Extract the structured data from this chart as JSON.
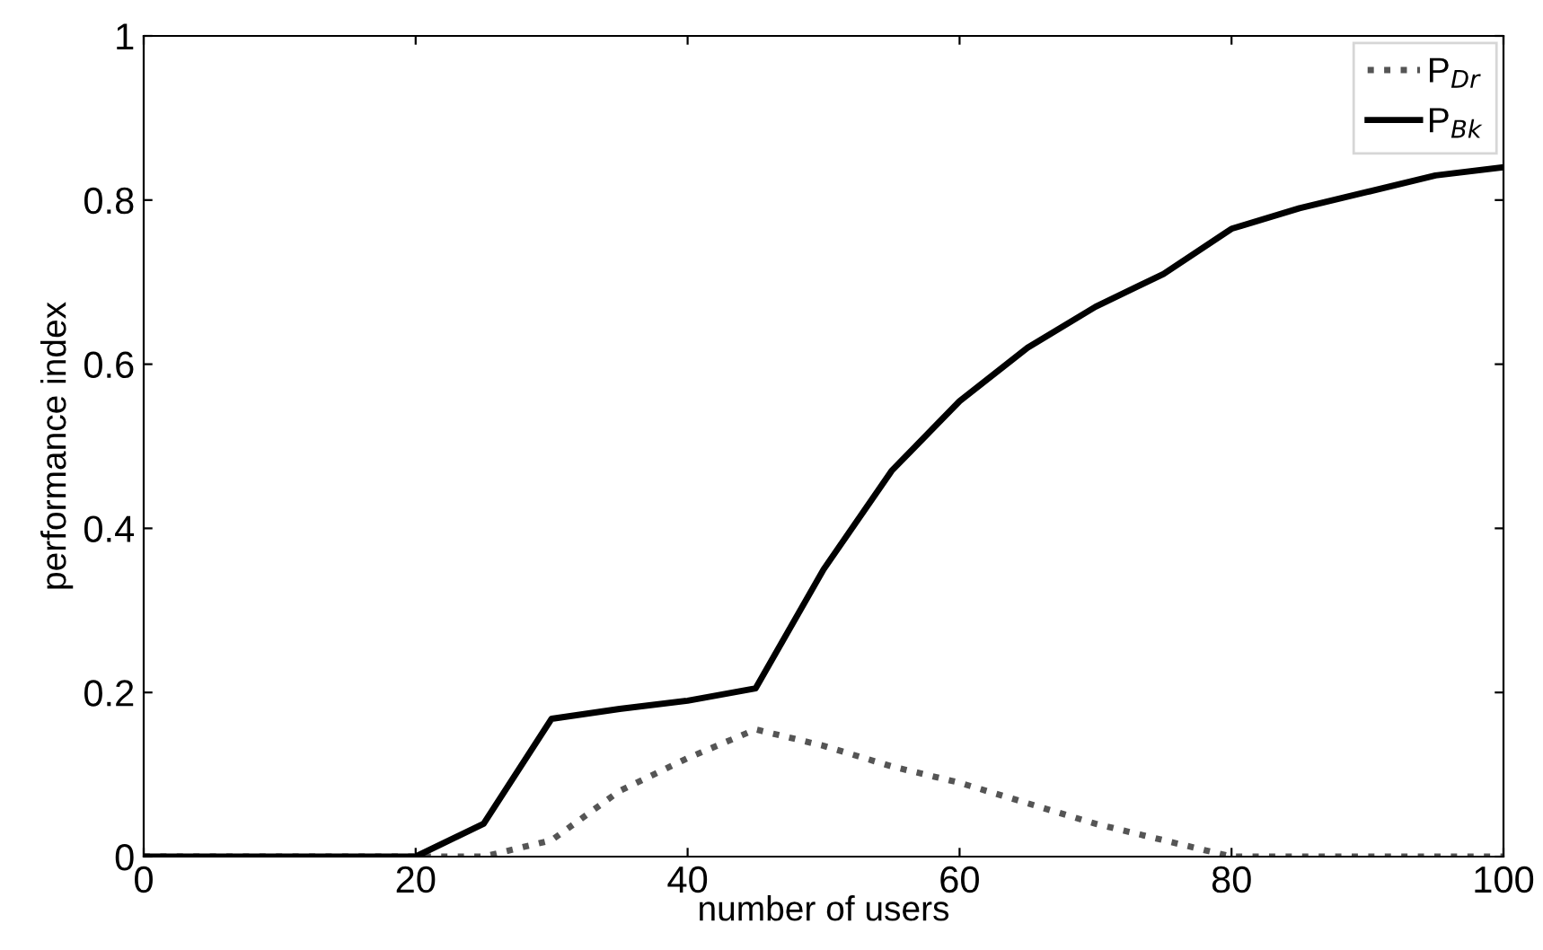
{
  "chart_data": {
    "type": "line",
    "xlabel": "number of users",
    "ylabel": "performance index",
    "x": [
      0,
      5,
      10,
      15,
      20,
      25,
      30,
      35,
      40,
      45,
      50,
      55,
      60,
      65,
      70,
      75,
      80,
      85,
      90,
      95,
      100
    ],
    "series": [
      {
        "name": "P$_{Dr}$",
        "color": "#555555",
        "line_style": "dotted",
        "values": [
          0,
          0,
          0,
          0,
          0,
          0,
          0.02,
          0.08,
          0.12,
          0.155,
          0.135,
          0.11,
          0.09,
          0.065,
          0.04,
          0.02,
          0,
          0,
          0,
          0,
          0
        ]
      },
      {
        "name": "P$_{Bk}$",
        "color": "#000000",
        "line_style": "solid",
        "values": [
          0,
          0,
          0,
          0,
          0,
          0.04,
          0.168,
          0.18,
          0.19,
          0.205,
          0.35,
          0.47,
          0.555,
          0.62,
          0.67,
          0.71,
          0.765,
          0.79,
          0.81,
          0.83,
          0.84
        ]
      }
    ],
    "xlim": [
      0,
      100
    ],
    "ylim": [
      0,
      1
    ],
    "xticks": [
      0,
      20,
      40,
      60,
      80,
      100
    ],
    "yticks": [
      0,
      0.2,
      0.4,
      0.6,
      0.8,
      1
    ],
    "grid": false,
    "legend": "top right"
  }
}
